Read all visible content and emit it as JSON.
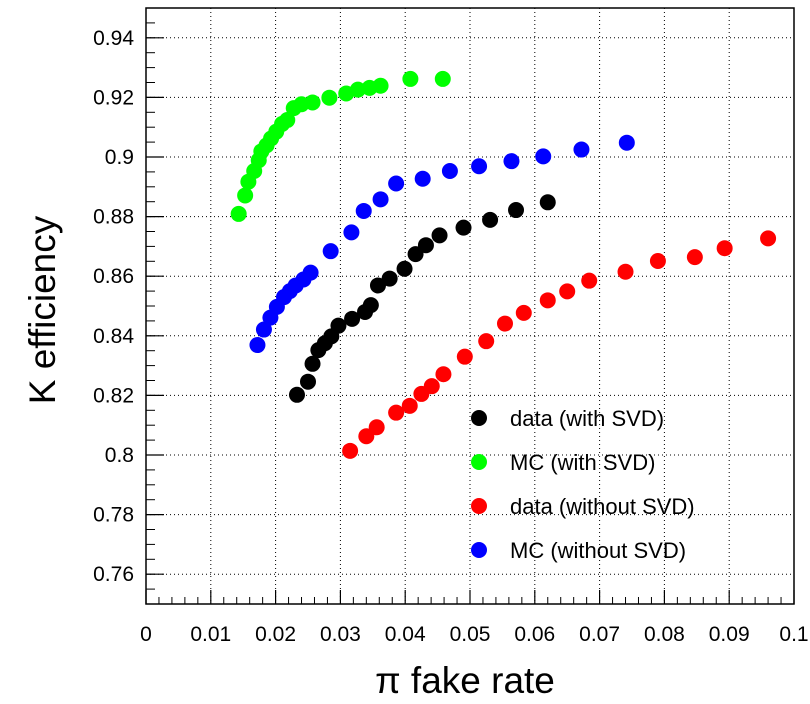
{
  "chart_data": {
    "type": "scatter",
    "xlabel": "π fake rate",
    "ylabel": "K efficiency",
    "xlim": [
      0,
      0.1
    ],
    "ylim": [
      0.75,
      0.95
    ],
    "grid": true,
    "legend_position": "bottom-right",
    "x_ticks": [
      "0",
      "0.01",
      "0.02",
      "0.03",
      "0.04",
      "0.05",
      "0.06",
      "0.07",
      "0.08",
      "0.09",
      "0.1"
    ],
    "y_ticks": [
      "0.76",
      "0.78",
      "0.8",
      "0.82",
      "0.84",
      "0.86",
      "0.88",
      "0.9",
      "0.92",
      "0.94"
    ],
    "series": [
      {
        "name": "data (with SVD)",
        "color": "#000000",
        "points": [
          [
            0.0233,
            0.8202
          ],
          [
            0.025,
            0.8246
          ],
          [
            0.0257,
            0.8306
          ],
          [
            0.0266,
            0.8352
          ],
          [
            0.0276,
            0.8375
          ],
          [
            0.0286,
            0.8398
          ],
          [
            0.0297,
            0.8434
          ],
          [
            0.0318,
            0.8457
          ],
          [
            0.0338,
            0.848
          ],
          [
            0.0347,
            0.8503
          ],
          [
            0.0358,
            0.8569
          ],
          [
            0.0376,
            0.8592
          ],
          [
            0.0399,
            0.8625
          ],
          [
            0.0416,
            0.8674
          ],
          [
            0.0432,
            0.8704
          ],
          [
            0.0453,
            0.8737
          ],
          [
            0.049,
            0.8763
          ],
          [
            0.0531,
            0.8789
          ],
          [
            0.0571,
            0.8822
          ],
          [
            0.062,
            0.8848
          ]
        ]
      },
      {
        "name": "MC (with SVD)",
        "color": "#00ff00",
        "points": [
          [
            0.0143,
            0.8809
          ],
          [
            0.0153,
            0.8871
          ],
          [
            0.0158,
            0.8917
          ],
          [
            0.0167,
            0.8953
          ],
          [
            0.0174,
            0.8989
          ],
          [
            0.0178,
            0.9019
          ],
          [
            0.0186,
            0.9039
          ],
          [
            0.0193,
            0.9062
          ],
          [
            0.0201,
            0.9085
          ],
          [
            0.021,
            0.9111
          ],
          [
            0.0218,
            0.9124
          ],
          [
            0.0228,
            0.9164
          ],
          [
            0.024,
            0.9177
          ],
          [
            0.0257,
            0.9183
          ],
          [
            0.0283,
            0.9199
          ],
          [
            0.0309,
            0.9213
          ],
          [
            0.0327,
            0.9226
          ],
          [
            0.0345,
            0.9232
          ],
          [
            0.0362,
            0.9239
          ],
          [
            0.0408,
            0.9262
          ],
          [
            0.0458,
            0.9262
          ]
        ]
      },
      {
        "name": "data (without SVD)",
        "color": "#ff0000",
        "points": [
          [
            0.0315,
            0.8014
          ],
          [
            0.034,
            0.8063
          ],
          [
            0.0356,
            0.8093
          ],
          [
            0.0386,
            0.8142
          ],
          [
            0.0407,
            0.8165
          ],
          [
            0.0425,
            0.8205
          ],
          [
            0.0441,
            0.8231
          ],
          [
            0.0459,
            0.8271
          ],
          [
            0.0492,
            0.833
          ],
          [
            0.0525,
            0.8382
          ],
          [
            0.0554,
            0.8441
          ],
          [
            0.0583,
            0.8477
          ],
          [
            0.062,
            0.8519
          ],
          [
            0.065,
            0.8549
          ],
          [
            0.0684,
            0.8585
          ],
          [
            0.074,
            0.8615
          ],
          [
            0.079,
            0.8651
          ],
          [
            0.0847,
            0.8664
          ],
          [
            0.0893,
            0.8694
          ],
          [
            0.096,
            0.8727
          ]
        ]
      },
      {
        "name": "MC (without SVD)",
        "color": "#0000ff",
        "points": [
          [
            0.0172,
            0.8369
          ],
          [
            0.0182,
            0.8421
          ],
          [
            0.0192,
            0.8461
          ],
          [
            0.0202,
            0.8497
          ],
          [
            0.0213,
            0.853
          ],
          [
            0.0222,
            0.855
          ],
          [
            0.0231,
            0.8569
          ],
          [
            0.0243,
            0.8589
          ],
          [
            0.0254,
            0.8612
          ],
          [
            0.0285,
            0.8684
          ],
          [
            0.0317,
            0.8747
          ],
          [
            0.0336,
            0.8819
          ],
          [
            0.0362,
            0.8858
          ],
          [
            0.0386,
            0.8911
          ],
          [
            0.0427,
            0.8927
          ],
          [
            0.0469,
            0.8953
          ],
          [
            0.0514,
            0.8969
          ],
          [
            0.0564,
            0.8986
          ],
          [
            0.0613,
            0.9002
          ],
          [
            0.0672,
            0.9025
          ],
          [
            0.0742,
            0.9048
          ]
        ]
      }
    ]
  }
}
